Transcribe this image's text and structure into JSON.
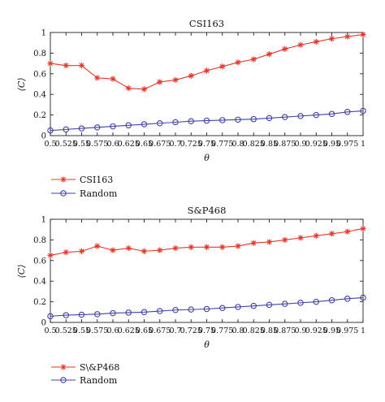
{
  "chart_data": [
    {
      "type": "line",
      "title": "CSI163",
      "xlabel": "θ",
      "ylabel": "⟨C⟩",
      "x": [
        0.5,
        0.525,
        0.55,
        0.575,
        0.6,
        0.625,
        0.65,
        0.675,
        0.7,
        0.725,
        0.75,
        0.775,
        0.8,
        0.825,
        0.85,
        0.875,
        0.9,
        0.925,
        0.95,
        0.975,
        1
      ],
      "x_tick_labels": [
        "0.5",
        "0.525",
        "0.55",
        "0.575",
        "0.6",
        "0.625",
        "0.65",
        "0.675",
        "0.7",
        "0.725",
        "0.75",
        "0.775",
        "0.8",
        "0.825",
        "0.85",
        "0.875",
        "0.9",
        "0.925",
        "0.95",
        "0.975",
        "1"
      ],
      "xlim": [
        0.5,
        1
      ],
      "ylim": [
        0,
        1
      ],
      "y_tick_labels": [
        "0",
        "0.2",
        "0.4",
        "0.6",
        "0.8",
        "1"
      ],
      "grid": false,
      "legend_position": "below",
      "series": [
        {
          "name": "CSI163",
          "color": "#e8352a",
          "marker": "star",
          "values": [
            0.7,
            0.68,
            0.68,
            0.56,
            0.55,
            0.46,
            0.45,
            0.52,
            0.54,
            0.58,
            0.63,
            0.67,
            0.71,
            0.74,
            0.79,
            0.84,
            0.88,
            0.91,
            0.94,
            0.96,
            0.98
          ]
        },
        {
          "name": "Random",
          "color": "#4242a8",
          "marker": "circle",
          "values": [
            0.05,
            0.06,
            0.07,
            0.08,
            0.09,
            0.1,
            0.11,
            0.12,
            0.13,
            0.14,
            0.145,
            0.15,
            0.155,
            0.16,
            0.17,
            0.18,
            0.19,
            0.2,
            0.21,
            0.23,
            0.24
          ]
        }
      ]
    },
    {
      "type": "line",
      "title": "S&P468",
      "xlabel": "θ",
      "ylabel": "⟨C⟩",
      "x": [
        0.5,
        0.525,
        0.55,
        0.575,
        0.6,
        0.625,
        0.65,
        0.675,
        0.7,
        0.725,
        0.75,
        0.775,
        0.8,
        0.825,
        0.85,
        0.875,
        0.9,
        0.925,
        0.95,
        0.975,
        1
      ],
      "x_tick_labels": [
        "0.5",
        "0.525",
        "0.55",
        "0.575",
        "0.6",
        "0.625",
        "0.65",
        "0.675",
        "0.7",
        "0.725",
        "0.75",
        "0.775",
        "0.8",
        "0.825",
        "0.85",
        "0.875",
        "0.9",
        "0.925",
        "0.95",
        "0.975",
        "1"
      ],
      "xlim": [
        0.5,
        1
      ],
      "ylim": [
        0,
        1
      ],
      "y_tick_labels": [
        "0",
        "0.2",
        "0.4",
        "0.6",
        "0.8",
        "1"
      ],
      "grid": false,
      "legend_position": "below",
      "series": [
        {
          "name": "S\\&P468",
          "color": "#e8352a",
          "marker": "star",
          "values": [
            0.65,
            0.68,
            0.69,
            0.74,
            0.7,
            0.72,
            0.69,
            0.7,
            0.72,
            0.73,
            0.73,
            0.73,
            0.74,
            0.77,
            0.78,
            0.8,
            0.82,
            0.84,
            0.86,
            0.88,
            0.91
          ]
        },
        {
          "name": "Random",
          "color": "#4242a8",
          "marker": "circle",
          "values": [
            0.06,
            0.07,
            0.075,
            0.08,
            0.09,
            0.095,
            0.1,
            0.11,
            0.12,
            0.125,
            0.13,
            0.14,
            0.15,
            0.16,
            0.17,
            0.18,
            0.19,
            0.2,
            0.215,
            0.23,
            0.24
          ]
        }
      ]
    }
  ]
}
